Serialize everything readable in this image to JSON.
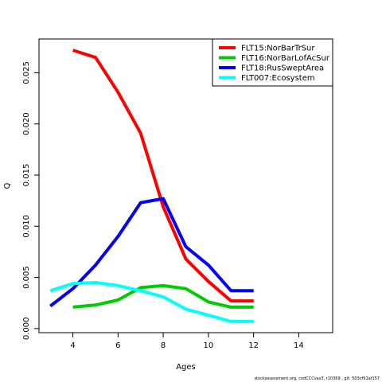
{
  "chart_data": {
    "type": "line",
    "xlabel": "Ages",
    "ylabel": "Q",
    "xlim": [
      2.5,
      15.5
    ],
    "ylim": [
      -0.0004,
      0.0283
    ],
    "xticks": [
      4,
      6,
      8,
      10,
      12,
      14
    ],
    "yticks": [
      0.0,
      0.005,
      0.01,
      0.015,
      0.02,
      0.025
    ],
    "ytick_labels": [
      "0.000",
      "0.005",
      "0.010",
      "0.015",
      "0.020",
      "0.025"
    ],
    "grid": false,
    "legend_position": "top-right",
    "series": [
      {
        "name": "FLT15:NorBarTrSur",
        "color": "#ff0000",
        "x": [
          4,
          5,
          6,
          7,
          8,
          9,
          10,
          11,
          12
        ],
        "y": [
          0.0272,
          0.0265,
          0.0231,
          0.0191,
          0.0119,
          0.0068,
          0.0046,
          0.0027,
          0.0027
        ]
      },
      {
        "name": "FLT16:NorBarLofAcSur",
        "color": "#00cd00",
        "x": [
          4,
          5,
          6,
          7,
          8,
          9,
          10,
          11,
          12
        ],
        "y": [
          0.0021,
          0.0023,
          0.0028,
          0.004,
          0.0042,
          0.0039,
          0.0026,
          0.0021,
          0.0021
        ]
      },
      {
        "name": "FLT18:RusSweptArea",
        "color": "#0000ff",
        "x": [
          3,
          4,
          5,
          6,
          7,
          8,
          9,
          10,
          11,
          12
        ],
        "y": [
          0.0022,
          0.0039,
          0.0062,
          0.009,
          0.0123,
          0.0127,
          0.008,
          0.0062,
          0.0037,
          0.0037
        ]
      },
      {
        "name": "FLT007:Ecosystem",
        "color": "#00ffff",
        "x": [
          3,
          4,
          5,
          6,
          7,
          8,
          9,
          10,
          11,
          12
        ],
        "y": [
          0.0037,
          0.0044,
          0.0045,
          0.0042,
          0.0037,
          0.0031,
          0.0019,
          0.0013,
          0.0007,
          0.0007
        ]
      }
    ]
  },
  "footer_text": "stockassessment.org,  codCCCvas3,  r10369 ,  git:  503cf91af157"
}
